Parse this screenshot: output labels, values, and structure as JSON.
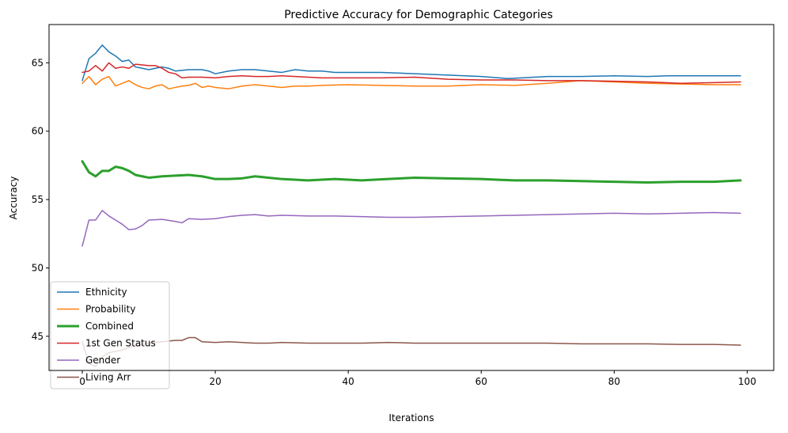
{
  "chart_data": {
    "type": "line",
    "title": "Predictive Accuracy for Demographic Categories",
    "xlabel": "Iterations",
    "ylabel": "Accuracy",
    "xlim": [
      -5,
      104
    ],
    "ylim": [
      42.5,
      67.8
    ],
    "xticks": [
      0,
      20,
      40,
      60,
      80,
      100
    ],
    "yticks": [
      45,
      50,
      55,
      60,
      65
    ],
    "grid": false,
    "legend_position": "lower-left",
    "series": [
      {
        "name": "Ethnicity",
        "color": "#1f77b4",
        "linewidth": 1.5,
        "x": [
          0,
          1,
          2,
          3,
          4,
          5,
          6,
          7,
          8,
          9,
          10,
          11,
          12,
          13,
          14,
          16,
          18,
          19,
          20,
          22,
          24,
          26,
          28,
          30,
          32,
          34,
          36,
          38,
          40,
          45,
          50,
          55,
          60,
          64,
          66,
          68,
          70,
          75,
          80,
          85,
          88,
          90,
          95,
          99
        ],
        "y": [
          63.7,
          65.3,
          65.7,
          66.3,
          65.8,
          65.5,
          65.1,
          65.2,
          64.7,
          64.6,
          64.5,
          64.6,
          64.7,
          64.6,
          64.4,
          64.5,
          64.5,
          64.4,
          64.2,
          64.4,
          64.5,
          64.5,
          64.4,
          64.3,
          64.5,
          64.4,
          64.4,
          64.3,
          64.3,
          64.3,
          64.2,
          64.1,
          64.0,
          63.85,
          63.9,
          63.95,
          64.0,
          64.0,
          64.05,
          64.0,
          64.05,
          64.05,
          64.05,
          64.05
        ]
      },
      {
        "name": "Probability",
        "color": "#ff7f0e",
        "linewidth": 1.5,
        "x": [
          0,
          1,
          2,
          3,
          4,
          5,
          6,
          7,
          8,
          9,
          10,
          11,
          12,
          13,
          14,
          15,
          16,
          17,
          18,
          19,
          20,
          22,
          24,
          26,
          28,
          30,
          32,
          34,
          36,
          40,
          45,
          50,
          55,
          60,
          65,
          70,
          75,
          80,
          85,
          90,
          95,
          99
        ],
        "y": [
          63.5,
          64.0,
          63.4,
          63.8,
          64.0,
          63.3,
          63.5,
          63.7,
          63.4,
          63.2,
          63.1,
          63.3,
          63.4,
          63.1,
          63.2,
          63.3,
          63.35,
          63.5,
          63.2,
          63.3,
          63.2,
          63.1,
          63.3,
          63.4,
          63.3,
          63.2,
          63.3,
          63.3,
          63.35,
          63.4,
          63.35,
          63.3,
          63.3,
          63.4,
          63.35,
          63.5,
          63.7,
          63.6,
          63.5,
          63.45,
          63.4,
          63.4
        ]
      },
      {
        "name": "Combined",
        "color": "#2ca02c",
        "linewidth": 3,
        "x": [
          0,
          1,
          2,
          3,
          4,
          5,
          6,
          7,
          8,
          9,
          10,
          12,
          14,
          16,
          18,
          20,
          22,
          24,
          26,
          28,
          30,
          34,
          38,
          42,
          46,
          50,
          55,
          60,
          65,
          70,
          75,
          80,
          85,
          90,
          95,
          99
        ],
        "y": [
          57.8,
          57.0,
          56.7,
          57.1,
          57.1,
          57.4,
          57.3,
          57.1,
          56.8,
          56.7,
          56.6,
          56.7,
          56.75,
          56.8,
          56.7,
          56.5,
          56.5,
          56.55,
          56.7,
          56.6,
          56.5,
          56.4,
          56.5,
          56.4,
          56.5,
          56.6,
          56.55,
          56.5,
          56.4,
          56.4,
          56.35,
          56.3,
          56.25,
          56.3,
          56.3,
          56.4
        ]
      },
      {
        "name": "1st Gen Status",
        "color": "#d62728",
        "linewidth": 1.5,
        "x": [
          0,
          1,
          2,
          3,
          4,
          5,
          6,
          7,
          8,
          9,
          10,
          11,
          12,
          13,
          14,
          15,
          16,
          18,
          20,
          22,
          24,
          26,
          28,
          30,
          32,
          34,
          36,
          40,
          45,
          50,
          55,
          60,
          65,
          70,
          75,
          80,
          85,
          90,
          95,
          99
        ],
        "y": [
          64.3,
          64.4,
          64.8,
          64.4,
          65.0,
          64.6,
          64.7,
          64.6,
          64.9,
          64.85,
          64.8,
          64.8,
          64.6,
          64.3,
          64.2,
          63.9,
          63.95,
          63.95,
          63.9,
          64.0,
          64.05,
          64.0,
          64.0,
          64.05,
          64.0,
          63.95,
          63.9,
          63.9,
          63.9,
          63.95,
          63.8,
          63.75,
          63.75,
          63.7,
          63.7,
          63.65,
          63.6,
          63.5,
          63.55,
          63.6
        ]
      },
      {
        "name": "Gender",
        "color": "#9467bd",
        "linewidth": 1.5,
        "x": [
          0,
          1,
          2,
          3,
          4,
          5,
          6,
          7,
          8,
          9,
          10,
          12,
          14,
          15,
          16,
          18,
          20,
          22,
          24,
          26,
          28,
          30,
          34,
          38,
          42,
          46,
          50,
          55,
          60,
          65,
          70,
          75,
          80,
          85,
          90,
          95,
          99
        ],
        "y": [
          51.6,
          53.5,
          53.5,
          54.2,
          53.8,
          53.5,
          53.2,
          52.8,
          52.85,
          53.1,
          53.5,
          53.55,
          53.4,
          53.3,
          53.6,
          53.55,
          53.6,
          53.75,
          53.85,
          53.9,
          53.8,
          53.85,
          53.8,
          53.8,
          53.75,
          53.7,
          53.7,
          53.75,
          53.8,
          53.85,
          53.9,
          53.95,
          54.0,
          53.95,
          54.0,
          54.05,
          54.0
        ]
      },
      {
        "name": "Living Arr",
        "color": "#8c564b",
        "linewidth": 1.5,
        "x": [
          0,
          1,
          2,
          3,
          4,
          5,
          6,
          7,
          8,
          9,
          10,
          12,
          14,
          15,
          16,
          17,
          18,
          20,
          22,
          24,
          26,
          28,
          30,
          34,
          38,
          42,
          46,
          50,
          55,
          60,
          65,
          70,
          75,
          80,
          85,
          90,
          95,
          99
        ],
        "y": [
          44.6,
          43.0,
          42.8,
          43.5,
          43.8,
          43.9,
          44.0,
          44.2,
          44.3,
          44.4,
          44.5,
          44.6,
          44.7,
          44.7,
          44.9,
          44.9,
          44.6,
          44.55,
          44.6,
          44.55,
          44.5,
          44.5,
          44.55,
          44.5,
          44.5,
          44.5,
          44.55,
          44.5,
          44.5,
          44.5,
          44.5,
          44.5,
          44.45,
          44.45,
          44.45,
          44.4,
          44.4,
          44.35
        ]
      }
    ]
  }
}
